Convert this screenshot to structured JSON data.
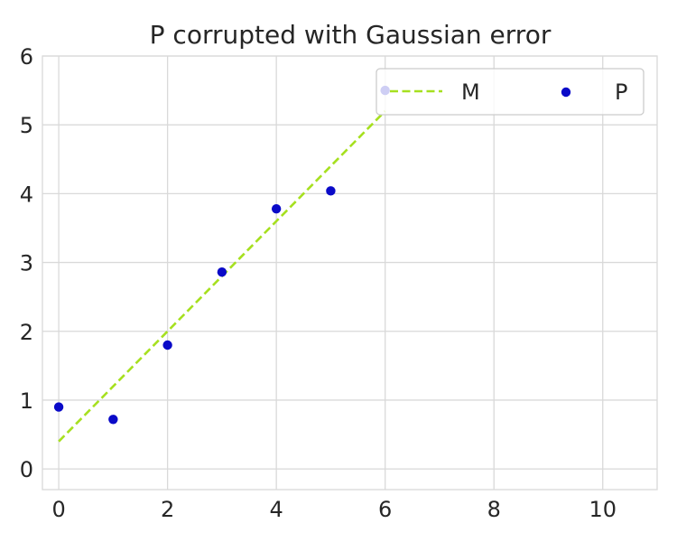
{
  "chart_data": {
    "type": "scatter",
    "title": "P corrupted with Gaussian error",
    "xlabel": "",
    "ylabel": "",
    "xlim": [
      -0.3,
      11
    ],
    "ylim": [
      -0.3,
      6
    ],
    "xticks": [
      0,
      2,
      4,
      6,
      8,
      10
    ],
    "yticks": [
      0,
      1,
      2,
      3,
      4,
      5,
      6
    ],
    "grid": true,
    "legend_position": "top-right",
    "series": [
      {
        "name": "M",
        "kind": "line",
        "style": "dashed",
        "color": "#a6e01f",
        "x": [
          0,
          6
        ],
        "y": [
          0.4,
          5.2
        ]
      },
      {
        "name": "P",
        "kind": "scatter",
        "color": "#0a0ac8",
        "x": [
          0,
          1,
          2,
          3,
          4,
          5,
          6
        ],
        "y": [
          0.9,
          0.72,
          1.8,
          2.86,
          3.78,
          4.04,
          5.5
        ]
      }
    ]
  }
}
